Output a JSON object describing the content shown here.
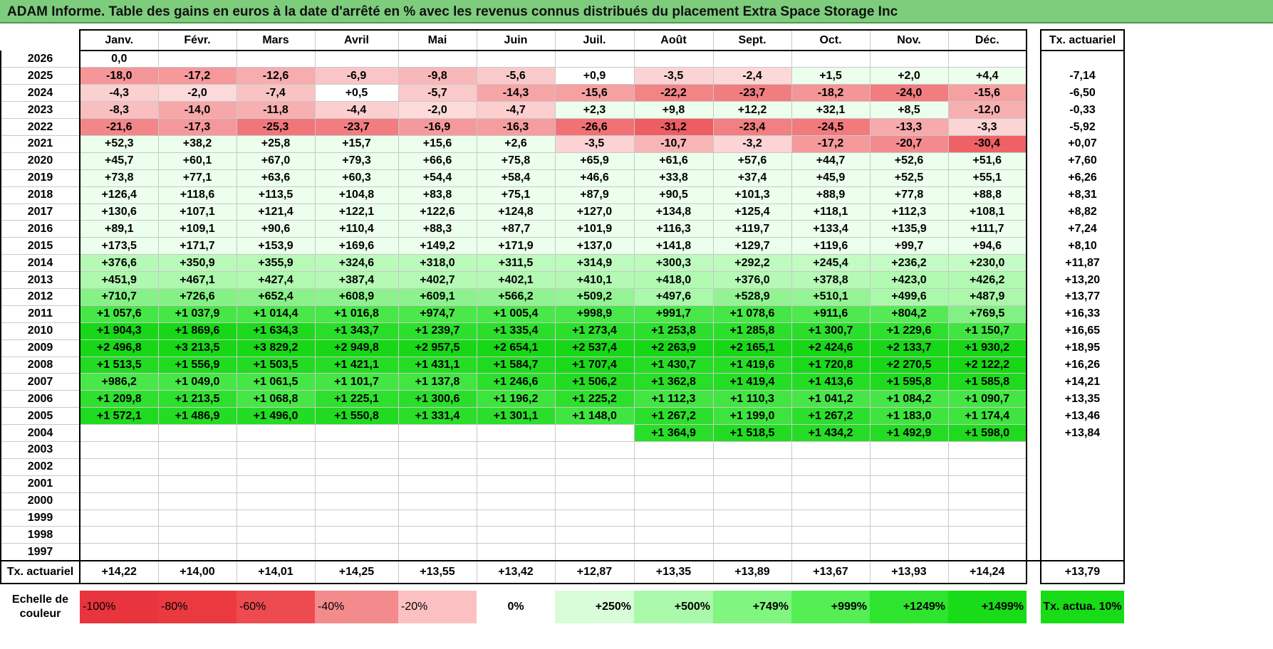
{
  "title": "ADAM Informe. Table des gains en euros à la date d'arrêté en % avec les revenus connus distribués du placement Extra Space Storage Inc",
  "months": [
    "Janv.",
    "Févr.",
    "Mars",
    "Avril",
    "Mai",
    "Juin",
    "Juil.",
    "Août",
    "Sept.",
    "Oct.",
    "Nov.",
    "Déc."
  ],
  "rate_header": "Tx. actuariel",
  "rows": [
    {
      "year": "2026",
      "values": [
        "0,0",
        "",
        "",
        "",
        "",
        "",
        "",
        "",
        "",
        "",
        "",
        ""
      ],
      "rate": ""
    },
    {
      "year": "2025",
      "values": [
        "-18,0",
        "-17,2",
        "-12,6",
        "-6,9",
        "-9,8",
        "-5,6",
        "+0,9",
        "-3,5",
        "-2,4",
        "+1,5",
        "+2,0",
        "+4,4"
      ],
      "rate": "-7,14"
    },
    {
      "year": "2024",
      "values": [
        "-4,3",
        "-2,0",
        "-7,4",
        "+0,5",
        "-5,7",
        "-14,3",
        "-15,6",
        "-22,2",
        "-23,7",
        "-18,2",
        "-24,0",
        "-15,6"
      ],
      "rate": "-6,50"
    },
    {
      "year": "2023",
      "values": [
        "-8,3",
        "-14,0",
        "-11,8",
        "-4,4",
        "-2,0",
        "-4,7",
        "+2,3",
        "+9,8",
        "+12,2",
        "+32,1",
        "+8,5",
        "-12,0"
      ],
      "rate": "-0,33"
    },
    {
      "year": "2022",
      "values": [
        "-21,6",
        "-17,3",
        "-25,3",
        "-23,7",
        "-16,9",
        "-16,3",
        "-26,6",
        "-31,2",
        "-23,4",
        "-24,5",
        "-13,3",
        "-3,3"
      ],
      "rate": "-5,92"
    },
    {
      "year": "2021",
      "values": [
        "+52,3",
        "+38,2",
        "+25,8",
        "+15,7",
        "+15,6",
        "+2,6",
        "-3,5",
        "-10,7",
        "-3,2",
        "-17,2",
        "-20,7",
        "-30,4"
      ],
      "rate": "+0,07"
    },
    {
      "year": "2020",
      "values": [
        "+45,7",
        "+60,1",
        "+67,0",
        "+79,3",
        "+66,6",
        "+75,8",
        "+65,9",
        "+61,6",
        "+57,6",
        "+44,7",
        "+52,6",
        "+51,6"
      ],
      "rate": "+7,60"
    },
    {
      "year": "2019",
      "values": [
        "+73,8",
        "+77,1",
        "+63,6",
        "+60,3",
        "+54,4",
        "+58,4",
        "+46,6",
        "+33,8",
        "+37,4",
        "+45,9",
        "+52,5",
        "+55,1"
      ],
      "rate": "+6,26"
    },
    {
      "year": "2018",
      "values": [
        "+126,4",
        "+118,6",
        "+113,5",
        "+104,8",
        "+83,8",
        "+75,1",
        "+87,9",
        "+90,5",
        "+101,3",
        "+88,9",
        "+77,8",
        "+88,8"
      ],
      "rate": "+8,31"
    },
    {
      "year": "2017",
      "values": [
        "+130,6",
        "+107,1",
        "+121,4",
        "+122,1",
        "+122,6",
        "+124,8",
        "+127,0",
        "+134,8",
        "+125,4",
        "+118,1",
        "+112,3",
        "+108,1"
      ],
      "rate": "+8,82"
    },
    {
      "year": "2016",
      "values": [
        "+89,1",
        "+109,1",
        "+90,6",
        "+110,4",
        "+88,3",
        "+87,7",
        "+101,9",
        "+116,3",
        "+119,7",
        "+133,4",
        "+135,9",
        "+111,7"
      ],
      "rate": "+7,24"
    },
    {
      "year": "2015",
      "values": [
        "+173,5",
        "+171,7",
        "+153,9",
        "+169,6",
        "+149,2",
        "+171,9",
        "+137,0",
        "+141,8",
        "+129,7",
        "+119,6",
        "+99,7",
        "+94,6"
      ],
      "rate": "+8,10"
    },
    {
      "year": "2014",
      "values": [
        "+376,6",
        "+350,9",
        "+355,9",
        "+324,6",
        "+318,0",
        "+311,5",
        "+314,9",
        "+300,3",
        "+292,2",
        "+245,4",
        "+236,2",
        "+230,0"
      ],
      "rate": "+11,87"
    },
    {
      "year": "2013",
      "values": [
        "+451,9",
        "+467,1",
        "+427,4",
        "+387,4",
        "+402,7",
        "+402,1",
        "+410,1",
        "+418,0",
        "+376,0",
        "+378,8",
        "+423,0",
        "+426,2"
      ],
      "rate": "+13,20"
    },
    {
      "year": "2012",
      "values": [
        "+710,7",
        "+726,6",
        "+652,4",
        "+608,9",
        "+609,1",
        "+566,2",
        "+509,2",
        "+497,6",
        "+528,9",
        "+510,1",
        "+499,6",
        "+487,9"
      ],
      "rate": "+13,77"
    },
    {
      "year": "2011",
      "values": [
        "+1 057,6",
        "+1 037,9",
        "+1 014,4",
        "+1 016,8",
        "+974,7",
        "+1 005,4",
        "+998,9",
        "+991,7",
        "+1 078,6",
        "+911,6",
        "+804,2",
        "+769,5"
      ],
      "rate": "+16,33"
    },
    {
      "year": "2010",
      "values": [
        "+1 904,3",
        "+1 869,6",
        "+1 634,3",
        "+1 343,7",
        "+1 239,7",
        "+1 335,4",
        "+1 273,4",
        "+1 253,8",
        "+1 285,8",
        "+1 300,7",
        "+1 229,6",
        "+1 150,7"
      ],
      "rate": "+16,65"
    },
    {
      "year": "2009",
      "values": [
        "+2 496,8",
        "+3 213,5",
        "+3 829,2",
        "+2 949,8",
        "+2 957,5",
        "+2 654,1",
        "+2 537,4",
        "+2 263,9",
        "+2 165,1",
        "+2 424,6",
        "+2 133,7",
        "+1 930,2"
      ],
      "rate": "+18,95"
    },
    {
      "year": "2008",
      "values": [
        "+1 513,5",
        "+1 556,9",
        "+1 503,5",
        "+1 421,1",
        "+1 431,1",
        "+1 584,7",
        "+1 707,4",
        "+1 430,7",
        "+1 419,6",
        "+1 720,8",
        "+2 270,5",
        "+2 122,2"
      ],
      "rate": "+16,26"
    },
    {
      "year": "2007",
      "values": [
        "+986,2",
        "+1 049,0",
        "+1 061,5",
        "+1 101,7",
        "+1 137,8",
        "+1 246,6",
        "+1 506,2",
        "+1 362,8",
        "+1 419,4",
        "+1 413,6",
        "+1 595,8",
        "+1 585,8"
      ],
      "rate": "+14,21"
    },
    {
      "year": "2006",
      "values": [
        "+1 209,8",
        "+1 213,5",
        "+1 068,8",
        "+1 225,1",
        "+1 300,6",
        "+1 196,2",
        "+1 225,2",
        "+1 112,3",
        "+1 110,3",
        "+1 041,2",
        "+1 084,2",
        "+1 090,7"
      ],
      "rate": "+13,35"
    },
    {
      "year": "2005",
      "values": [
        "+1 572,1",
        "+1 486,9",
        "+1 496,0",
        "+1 550,8",
        "+1 331,4",
        "+1 301,1",
        "+1 148,0",
        "+1 267,2",
        "+1 199,0",
        "+1 267,2",
        "+1 183,0",
        "+1 174,4"
      ],
      "rate": "+13,46"
    },
    {
      "year": "2004",
      "values": [
        "",
        "",
        "",
        "",
        "",
        "",
        "",
        "+1 364,9",
        "+1 518,5",
        "+1 434,2",
        "+1 492,9",
        "+1 598,0"
      ],
      "rate": "+13,84"
    },
    {
      "year": "2003",
      "values": [
        "",
        "",
        "",
        "",
        "",
        "",
        "",
        "",
        "",
        "",
        "",
        ""
      ],
      "rate": ""
    },
    {
      "year": "2002",
      "values": [
        "",
        "",
        "",
        "",
        "",
        "",
        "",
        "",
        "",
        "",
        "",
        ""
      ],
      "rate": ""
    },
    {
      "year": "2001",
      "values": [
        "",
        "",
        "",
        "",
        "",
        "",
        "",
        "",
        "",
        "",
        "",
        ""
      ],
      "rate": ""
    },
    {
      "year": "2000",
      "values": [
        "",
        "",
        "",
        "",
        "",
        "",
        "",
        "",
        "",
        "",
        "",
        ""
      ],
      "rate": ""
    },
    {
      "year": "1999",
      "values": [
        "",
        "",
        "",
        "",
        "",
        "",
        "",
        "",
        "",
        "",
        "",
        ""
      ],
      "rate": ""
    },
    {
      "year": "1998",
      "values": [
        "",
        "",
        "",
        "",
        "",
        "",
        "",
        "",
        "",
        "",
        "",
        ""
      ],
      "rate": ""
    },
    {
      "year": "1997",
      "values": [
        "",
        "",
        "",
        "",
        "",
        "",
        "",
        "",
        "",
        "",
        "",
        ""
      ],
      "rate": ""
    }
  ],
  "footer": {
    "label": "Tx. actuariel",
    "values": [
      "+14,22",
      "+14,00",
      "+14,01",
      "+14,25",
      "+13,55",
      "+13,42",
      "+12,87",
      "+13,35",
      "+13,89",
      "+13,67",
      "+13,93",
      "+14,24"
    ],
    "rate": "+13,79"
  },
  "scale": {
    "label": "Echelle de couleur",
    "steps": [
      {
        "label": "-100%",
        "color": "#e8343c"
      },
      {
        "label": "-80%",
        "color": "#ea3a40"
      },
      {
        "label": "-60%",
        "color": "#ee4b50"
      },
      {
        "label": "-40%",
        "color": "#f38a8c"
      },
      {
        "label": "-20%",
        "color": "#fbc1c2"
      },
      {
        "label": "0%",
        "color": "#ffffff"
      },
      {
        "label": "+250%",
        "color": "#d9fdd9"
      },
      {
        "label": "+500%",
        "color": "#aaf9aa"
      },
      {
        "label": "+749%",
        "color": "#80f580"
      },
      {
        "label": "+999%",
        "color": "#55ee55"
      },
      {
        "label": "+1249%",
        "color": "#2ee42e"
      },
      {
        "label": "+1499%",
        "color": "#17dc17"
      }
    ],
    "rate_label": "Tx. actua. 10%",
    "rate_color": "#17dc17"
  },
  "colors": {
    "title_bg": "#7dcd7d",
    "neg_strong": "#ee5a5e",
    "neg_light": "#fde2e2",
    "pos_light": "#f2fff2",
    "pos_strong": "#17dc17"
  }
}
